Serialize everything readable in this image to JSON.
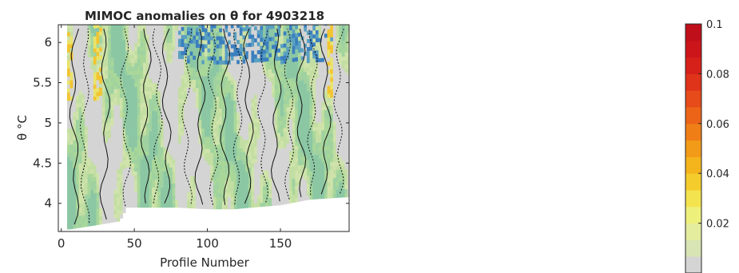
{
  "chart_data": {
    "type": "heatmap",
    "title": "MIMOC anomalies on θ  for 4903218",
    "xlabel": "Profile Number",
    "ylabel": "θ °C",
    "xlim": [
      -2,
      197
    ],
    "ylim": [
      3.65,
      6.22
    ],
    "xticks": [
      0,
      50,
      100,
      150
    ],
    "xtick_labels": [
      "0",
      "50",
      "100",
      "150"
    ],
    "yticks": [
      4,
      4.5,
      5,
      5.5,
      6
    ],
    "ytick_labels": [
      "4",
      "4.5",
      "5",
      "5.5",
      "6"
    ],
    "grid": false,
    "legend": "none",
    "colorbar": {
      "range": [
        0,
        0.1
      ],
      "ticks": [
        0.02,
        0.04,
        0.06,
        0.08,
        0.1
      ],
      "tick_labels": [
        "0.02",
        "0.04",
        "0.06",
        "0.08",
        "0.1"
      ],
      "colors": [
        "#d4d4d4",
        "#d8e4b4",
        "#e4ec9e",
        "#eef07c",
        "#f3e34e",
        "#f4cc2c",
        "#f4b41c",
        "#f29b18",
        "#ef7e17",
        "#ec6418",
        "#e64b19",
        "#df331a",
        "#d6211a",
        "#cc151a",
        "#bf0f1a"
      ]
    },
    "bottom_edge_profile": [
      {
        "x": 6,
        "y": 3.68
      },
      {
        "x": 20,
        "y": 3.72
      },
      {
        "x": 40,
        "y": 3.78
      },
      {
        "x": 45,
        "y": 3.95
      },
      {
        "x": 80,
        "y": 3.95
      },
      {
        "x": 100,
        "y": 3.93
      },
      {
        "x": 118,
        "y": 3.93
      },
      {
        "x": 130,
        "y": 3.95
      },
      {
        "x": 150,
        "y": 3.98
      },
      {
        "x": 170,
        "y": 4.05
      },
      {
        "x": 196,
        "y": 4.08
      }
    ]
  }
}
